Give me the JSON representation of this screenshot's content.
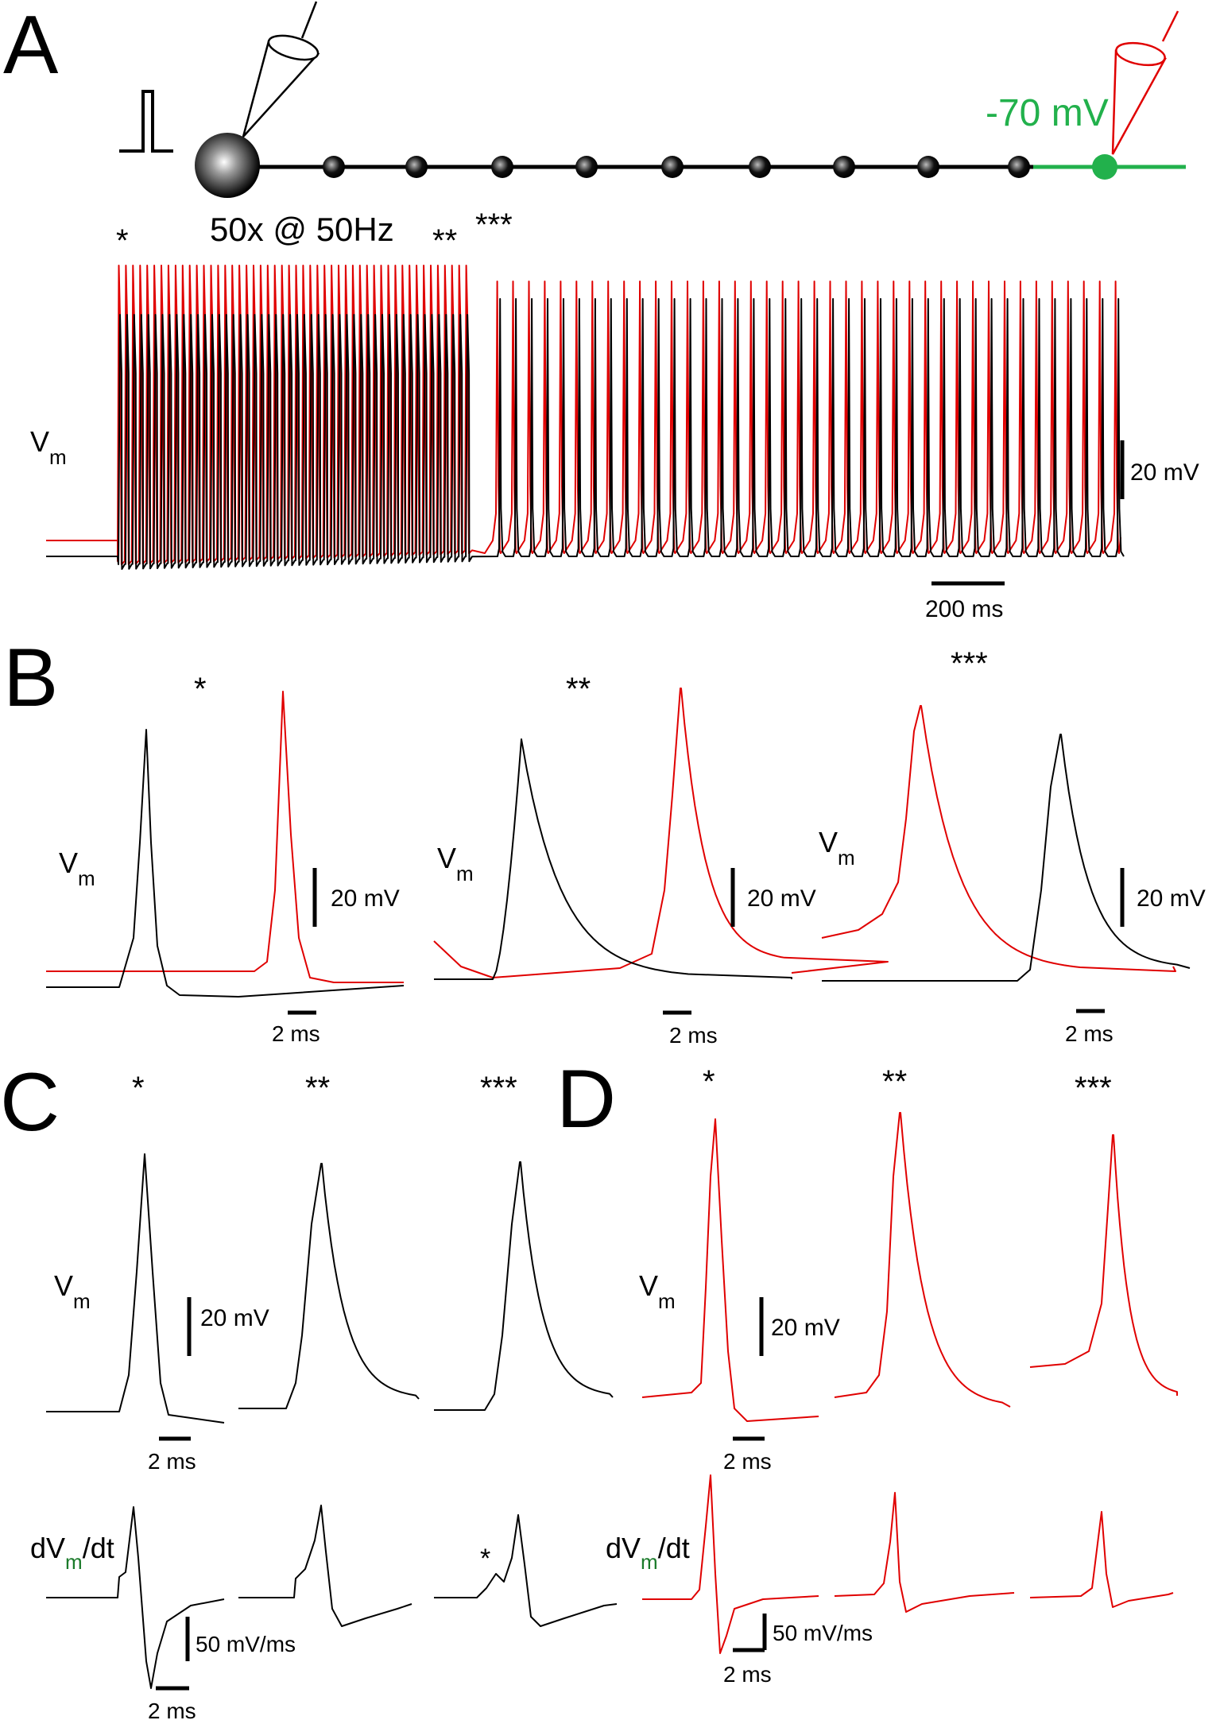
{
  "panel_a": {
    "letter": "A",
    "stimulus_label": "50x @ 50Hz",
    "clamp_label": "-70 mV",
    "vm_label": "V",
    "vm_sub": "m",
    "markers": [
      "*",
      "**",
      "***"
    ],
    "scale_voltage": "20 mV",
    "scale_time": "200 ms",
    "colors": {
      "soma_trace": "#000000",
      "axon_trace": "#e00000",
      "clamp": "#22b14c"
    }
  },
  "panel_b": {
    "letter": "B",
    "groups": [
      {
        "marker": "*",
        "vm_label": "V",
        "vm_sub": "m",
        "scale_voltage": "20 mV",
        "scale_time": "2 ms"
      },
      {
        "marker": "**",
        "vm_label": "V",
        "vm_sub": "m",
        "scale_voltage": "20 mV",
        "scale_time": "2 ms"
      },
      {
        "marker": "***",
        "vm_label": "V",
        "vm_sub": "m",
        "scale_voltage": "20 mV",
        "scale_time": "2 ms"
      }
    ]
  },
  "panel_c": {
    "letter": "C",
    "markers": [
      "*",
      "**",
      "***"
    ],
    "vm_label": "V",
    "vm_sub": "m",
    "scale_voltage": "20 mV",
    "scale_time_top": "2 ms",
    "dv_label_a": "dV",
    "dv_sub": "m",
    "dv_label_b": "/dt",
    "inset_marker": "*",
    "scale_rate": "50 mV/ms",
    "scale_time_bottom": "2 ms"
  },
  "panel_d": {
    "letter": "D",
    "markers": [
      "*",
      "**",
      "***"
    ],
    "vm_label": "V",
    "vm_sub": "m",
    "scale_voltage": "20 mV",
    "scale_time_top": "2 ms",
    "dv_label_a": "dV",
    "dv_sub": "m",
    "dv_label_b": "/dt",
    "scale_rate": "50 mV/ms",
    "scale_time_bottom": "2 ms"
  }
}
